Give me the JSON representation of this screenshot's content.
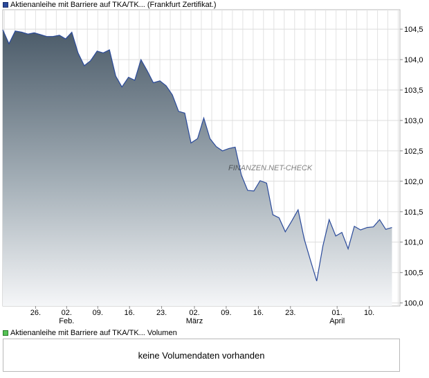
{
  "legend": {
    "price_label": "Aktienanleihe mit Barriere auf TKA/TK... (Frankfurt Zertifikat.)",
    "volume_label": "Aktienanleihe mit Barriere auf TKA/TK... Volumen",
    "price_color": "#2a4a9a",
    "volume_color": "#55c255"
  },
  "volume_panel": {
    "message": "keine Volumendaten vorhanden"
  },
  "chart_data": {
    "type": "area",
    "title": "Aktienanleihe mit Barriere auf TKA/TK... (Frankfurt Zertifikat.)",
    "xlabel": "",
    "ylabel": "",
    "ylim": [
      99.95,
      104.82
    ],
    "x_range_days": [
      0,
      115
    ],
    "y_ticks": [
      {
        "value": 100.0,
        "label": "100,0"
      },
      {
        "value": 100.5,
        "label": "100,5"
      },
      {
        "value": 101.0,
        "label": "101,0"
      },
      {
        "value": 101.5,
        "label": "101,5"
      },
      {
        "value": 102.0,
        "label": "102,0"
      },
      {
        "value": 102.5,
        "label": "102,5"
      },
      {
        "value": 103.0,
        "label": "103,0"
      },
      {
        "value": 103.5,
        "label": "103,5"
      },
      {
        "value": 104.0,
        "label": "104,0"
      },
      {
        "value": 104.5,
        "label": "104,5"
      }
    ],
    "x_ticks": [
      {
        "day": 9.5,
        "label": "26."
      },
      {
        "day": 18.5,
        "label": "02.",
        "month": "Feb."
      },
      {
        "day": 27.5,
        "label": "09."
      },
      {
        "day": 36.7,
        "label": "16."
      },
      {
        "day": 46.0,
        "label": "23."
      },
      {
        "day": 55.5,
        "label": "02.",
        "month": "März"
      },
      {
        "day": 64.7,
        "label": "09."
      },
      {
        "day": 74.0,
        "label": "16."
      },
      {
        "day": 83.3,
        "label": "23."
      },
      {
        "day": 96.8,
        "label": "01.",
        "month": "April"
      },
      {
        "day": 106.1,
        "label": "10."
      }
    ],
    "series": [
      {
        "name": "Aktienanleihe mit Barriere auf TKA/TK... (Frankfurt Zertifikat.)",
        "color": "#2a4a9a",
        "points": [
          [
            0.0,
            104.49
          ],
          [
            1.8,
            104.26
          ],
          [
            3.6,
            104.47
          ],
          [
            5.5,
            104.45
          ],
          [
            7.3,
            104.42
          ],
          [
            9.1,
            104.44
          ],
          [
            10.9,
            104.41
          ],
          [
            12.7,
            104.38
          ],
          [
            14.5,
            104.38
          ],
          [
            16.4,
            104.4
          ],
          [
            18.2,
            104.34
          ],
          [
            20.0,
            104.45
          ],
          [
            21.8,
            104.11
          ],
          [
            23.6,
            103.9
          ],
          [
            25.4,
            103.98
          ],
          [
            27.3,
            104.14
          ],
          [
            29.1,
            104.11
          ],
          [
            30.9,
            104.16
          ],
          [
            32.7,
            103.73
          ],
          [
            34.5,
            103.55
          ],
          [
            36.4,
            103.71
          ],
          [
            38.2,
            103.66
          ],
          [
            40.0,
            104.0
          ],
          [
            41.8,
            103.82
          ],
          [
            43.6,
            103.62
          ],
          [
            45.5,
            103.65
          ],
          [
            47.3,
            103.57
          ],
          [
            49.1,
            103.42
          ],
          [
            50.9,
            103.15
          ],
          [
            52.7,
            103.12
          ],
          [
            54.5,
            102.63
          ],
          [
            56.4,
            102.7
          ],
          [
            58.2,
            103.04
          ],
          [
            60.0,
            102.7
          ],
          [
            61.8,
            102.57
          ],
          [
            63.6,
            102.5
          ],
          [
            65.5,
            102.54
          ],
          [
            67.3,
            102.56
          ],
          [
            69.1,
            102.1
          ],
          [
            70.9,
            101.85
          ],
          [
            72.7,
            101.84
          ],
          [
            74.5,
            102.01
          ],
          [
            76.4,
            101.97
          ],
          [
            78.2,
            101.45
          ],
          [
            80.0,
            101.4
          ],
          [
            81.8,
            101.17
          ],
          [
            83.6,
            101.34
          ],
          [
            85.5,
            101.53
          ],
          [
            87.3,
            101.05
          ],
          [
            89.1,
            100.7
          ],
          [
            90.9,
            100.36
          ],
          [
            92.7,
            100.94
          ],
          [
            94.5,
            101.37
          ],
          [
            96.4,
            101.1
          ],
          [
            98.2,
            101.16
          ],
          [
            100.0,
            100.89
          ],
          [
            101.8,
            101.26
          ],
          [
            103.6,
            101.2
          ],
          [
            105.5,
            101.24
          ],
          [
            107.3,
            101.25
          ],
          [
            109.1,
            101.37
          ],
          [
            110.9,
            101.21
          ],
          [
            112.7,
            101.24
          ]
        ]
      }
    ],
    "grid": true,
    "watermark": "FINANZEN.NET-CHECK"
  }
}
